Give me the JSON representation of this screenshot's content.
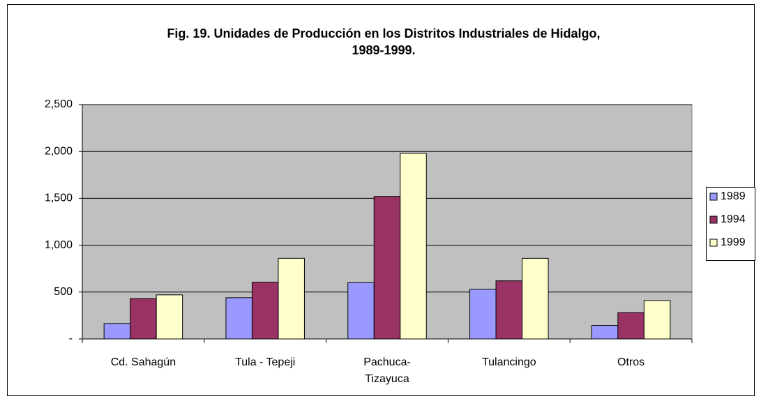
{
  "chart_data": {
    "type": "bar",
    "title": "Fig. 19. Unidades de Producción en los Distritos Industriales de Hidalgo,\n1989-1999.",
    "categories": [
      "Cd. Sahagún",
      "Tula - Tepeji",
      "Pachuca-\nTizayuca",
      "Tulancingo",
      "Otros"
    ],
    "series": [
      {
        "name": "1989",
        "color": "#9999ff",
        "values": [
          165,
          440,
          600,
          530,
          145
        ]
      },
      {
        "name": "1994",
        "color": "#993366",
        "values": [
          430,
          605,
          1520,
          620,
          280
        ]
      },
      {
        "name": "1999",
        "color": "#ffffcc",
        "values": [
          470,
          860,
          1980,
          860,
          410
        ]
      }
    ],
    "ylim": [
      0,
      2500
    ],
    "yticks": [
      {
        "value": 0,
        "label": "-"
      },
      500,
      {
        "value": 1000,
        "label": "1,000"
      },
      {
        "value": 1500,
        "label": "1,500"
      },
      {
        "value": 2000,
        "label": "2,000"
      },
      {
        "value": 2500,
        "label": "2,500"
      }
    ],
    "grid": true,
    "legend": "right",
    "plot_background": "#c0c0c0"
  }
}
